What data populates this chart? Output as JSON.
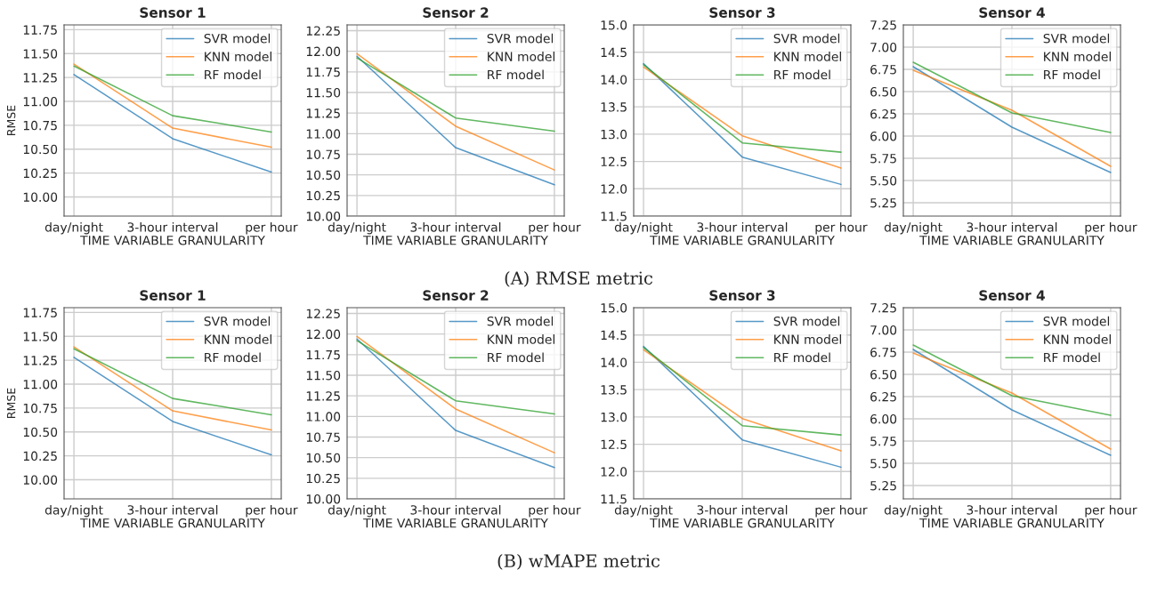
{
  "chart_data": [
    {
      "type": "line",
      "title": "Sensor 1",
      "xlabel": "TIME VARIABLE GRANULARITY",
      "ylabel": "RMSE",
      "categories": [
        "day/night",
        "3-hour interval",
        "per hour"
      ],
      "ylim": [
        9.8,
        11.8
      ],
      "yticks": [
        {
          "value": 10.0,
          "label": "10.00"
        },
        {
          "value": 10.25,
          "label": "10.25"
        },
        {
          "value": 10.5,
          "label": "10.50"
        },
        {
          "value": 10.75,
          "label": "10.75"
        },
        {
          "value": 11.0,
          "label": "11.00"
        },
        {
          "value": 11.25,
          "label": "11.25"
        },
        {
          "value": 11.5,
          "label": "11.50"
        },
        {
          "value": 11.75,
          "label": "11.75"
        }
      ],
      "grid": true,
      "legend": "top right",
      "annotations": [
        "(A) RMSE metric"
      ],
      "series": [
        {
          "name": "SVR model",
          "color": "#1f77b4",
          "values": [
            11.28,
            10.61,
            10.26
          ]
        },
        {
          "name": "KNN model",
          "color": "#ff7f0e",
          "values": [
            11.39,
            10.72,
            10.52
          ]
        },
        {
          "name": "RF model",
          "color": "#2ca02c",
          "values": [
            11.37,
            10.85,
            10.68
          ]
        }
      ]
    },
    {
      "type": "line",
      "title": "Sensor 2",
      "xlabel": "TIME VARIABLE GRANULARITY",
      "categories": [
        "day/night",
        "3-hour interval",
        "per hour"
      ],
      "ylim": [
        10.0,
        12.32
      ],
      "yticks": [
        {
          "value": 10.0,
          "label": "10.00"
        },
        {
          "value": 10.25,
          "label": "10.25"
        },
        {
          "value": 10.5,
          "label": "10.50"
        },
        {
          "value": 10.75,
          "label": "10.75"
        },
        {
          "value": 11.0,
          "label": "11.00"
        },
        {
          "value": 11.25,
          "label": "11.25"
        },
        {
          "value": 11.5,
          "label": "11.50"
        },
        {
          "value": 11.75,
          "label": "11.75"
        },
        {
          "value": 12.0,
          "label": "12.00"
        },
        {
          "value": 12.25,
          "label": "12.25"
        }
      ],
      "grid": true,
      "legend": "top right",
      "series": [
        {
          "name": "SVR model",
          "color": "#1f77b4",
          "values": [
            11.94,
            10.83,
            10.38
          ]
        },
        {
          "name": "KNN model",
          "color": "#ff7f0e",
          "values": [
            11.97,
            11.09,
            10.56
          ]
        },
        {
          "name": "RF model",
          "color": "#2ca02c",
          "values": [
            11.92,
            11.19,
            11.03
          ]
        }
      ]
    },
    {
      "type": "line",
      "title": "Sensor 3",
      "xlabel": "TIME VARIABLE GRANULARITY",
      "categories": [
        "day/night",
        "3-hour interval",
        "per hour"
      ],
      "ylim": [
        11.5,
        15.0
      ],
      "yticks": [
        11.5,
        {
          "value": 12.0,
          "label": "12.0"
        },
        12.5,
        {
          "value": 13.0,
          "label": "13.0"
        },
        13.5,
        {
          "value": 14.0,
          "label": "14.0"
        },
        14.5,
        {
          "value": 15.0,
          "label": "15.0"
        }
      ],
      "grid": true,
      "legend": "top right",
      "series": [
        {
          "name": "SVR model",
          "color": "#1f77b4",
          "values": [
            14.29,
            12.58,
            12.08
          ]
        },
        {
          "name": "KNN model",
          "color": "#ff7f0e",
          "values": [
            14.23,
            12.97,
            12.38
          ]
        },
        {
          "name": "RF model",
          "color": "#2ca02c",
          "values": [
            14.27,
            12.84,
            12.67
          ]
        }
      ]
    },
    {
      "type": "line",
      "title": "Sensor 4",
      "xlabel": "TIME VARIABLE GRANULARITY",
      "categories": [
        "day/night",
        "3-hour interval",
        "per hour"
      ],
      "ylim": [
        5.1,
        7.25
      ],
      "yticks": [
        5.25,
        {
          "value": 5.5,
          "label": "5.50"
        },
        5.75,
        {
          "value": 6.0,
          "label": "6.00"
        },
        6.25,
        {
          "value": 6.5,
          "label": "6.50"
        },
        6.75,
        {
          "value": 7.0,
          "label": "7.00"
        },
        7.25
      ],
      "grid": true,
      "legend": "top right",
      "series": [
        {
          "name": "SVR model",
          "color": "#1f77b4",
          "values": [
            6.78,
            6.1,
            5.59
          ]
        },
        {
          "name": "KNN model",
          "color": "#ff7f0e",
          "values": [
            6.74,
            6.29,
            5.66
          ]
        },
        {
          "name": "RF model",
          "color": "#2ca02c",
          "values": [
            6.83,
            6.26,
            6.04
          ]
        }
      ]
    },
    {
      "type": "line",
      "title": "Sensor 1",
      "xlabel": "TIME VARIABLE GRANULARITY",
      "ylabel": "RMSE",
      "categories": [
        "day/night",
        "3-hour interval",
        "per hour"
      ],
      "ylim": [
        9.8,
        11.8
      ],
      "yticks": [
        {
          "value": 10.0,
          "label": "10.00"
        },
        {
          "value": 10.25,
          "label": "10.25"
        },
        {
          "value": 10.5,
          "label": "10.50"
        },
        {
          "value": 10.75,
          "label": "10.75"
        },
        {
          "value": 11.0,
          "label": "11.00"
        },
        {
          "value": 11.25,
          "label": "11.25"
        },
        {
          "value": 11.5,
          "label": "11.50"
        },
        {
          "value": 11.75,
          "label": "11.75"
        }
      ],
      "grid": true,
      "legend": "top right",
      "annotations": [
        "(B) wMAPE metric"
      ],
      "series": [
        {
          "name": "SVR model",
          "color": "#1f77b4",
          "values": [
            11.28,
            10.61,
            10.26
          ]
        },
        {
          "name": "KNN model",
          "color": "#ff7f0e",
          "values": [
            11.39,
            10.72,
            10.52
          ]
        },
        {
          "name": "RF model",
          "color": "#2ca02c",
          "values": [
            11.37,
            10.85,
            10.68
          ]
        }
      ]
    },
    {
      "type": "line",
      "title": "Sensor 2",
      "xlabel": "TIME VARIABLE GRANULARITY",
      "categories": [
        "day/night",
        "3-hour interval",
        "per hour"
      ],
      "ylim": [
        10.0,
        12.32
      ],
      "yticks": [
        {
          "value": 10.0,
          "label": "10.00"
        },
        {
          "value": 10.25,
          "label": "10.25"
        },
        {
          "value": 10.5,
          "label": "10.50"
        },
        {
          "value": 10.75,
          "label": "10.75"
        },
        {
          "value": 11.0,
          "label": "11.00"
        },
        {
          "value": 11.25,
          "label": "11.25"
        },
        {
          "value": 11.5,
          "label": "11.50"
        },
        {
          "value": 11.75,
          "label": "11.75"
        },
        {
          "value": 12.0,
          "label": "12.00"
        },
        {
          "value": 12.25,
          "label": "12.25"
        }
      ],
      "grid": true,
      "legend": "top right",
      "series": [
        {
          "name": "SVR model",
          "color": "#1f77b4",
          "values": [
            11.94,
            10.83,
            10.38
          ]
        },
        {
          "name": "KNN model",
          "color": "#ff7f0e",
          "values": [
            11.97,
            11.09,
            10.56
          ]
        },
        {
          "name": "RF model",
          "color": "#2ca02c",
          "values": [
            11.92,
            11.19,
            11.03
          ]
        }
      ]
    },
    {
      "type": "line",
      "title": "Sensor 3",
      "xlabel": "TIME VARIABLE GRANULARITY",
      "categories": [
        "day/night",
        "3-hour interval",
        "per hour"
      ],
      "ylim": [
        11.5,
        15.0
      ],
      "yticks": [
        11.5,
        {
          "value": 12.0,
          "label": "12.0"
        },
        12.5,
        {
          "value": 13.0,
          "label": "13.0"
        },
        13.5,
        {
          "value": 14.0,
          "label": "14.0"
        },
        14.5,
        {
          "value": 15.0,
          "label": "15.0"
        }
      ],
      "grid": true,
      "legend": "top right",
      "series": [
        {
          "name": "SVR model",
          "color": "#1f77b4",
          "values": [
            14.29,
            12.58,
            12.08
          ]
        },
        {
          "name": "KNN model",
          "color": "#ff7f0e",
          "values": [
            14.23,
            12.97,
            12.38
          ]
        },
        {
          "name": "RF model",
          "color": "#2ca02c",
          "values": [
            14.27,
            12.84,
            12.67
          ]
        }
      ]
    },
    {
      "type": "line",
      "title": "Sensor 4",
      "xlabel": "TIME VARIABLE GRANULARITY",
      "categories": [
        "day/night",
        "3-hour interval",
        "per hour"
      ],
      "ylim": [
        5.1,
        7.25
      ],
      "yticks": [
        5.25,
        {
          "value": 5.5,
          "label": "5.50"
        },
        5.75,
        {
          "value": 6.0,
          "label": "6.00"
        },
        6.25,
        {
          "value": 6.5,
          "label": "6.50"
        },
        6.75,
        {
          "value": 7.0,
          "label": "7.00"
        },
        7.25
      ],
      "grid": true,
      "legend": "top right",
      "series": [
        {
          "name": "SVR model",
          "color": "#1f77b4",
          "values": [
            6.78,
            6.1,
            5.59
          ]
        },
        {
          "name": "KNN model",
          "color": "#ff7f0e",
          "values": [
            6.74,
            6.29,
            5.66
          ]
        },
        {
          "name": "RF model",
          "color": "#2ca02c",
          "values": [
            6.83,
            6.26,
            6.04
          ]
        }
      ]
    }
  ]
}
